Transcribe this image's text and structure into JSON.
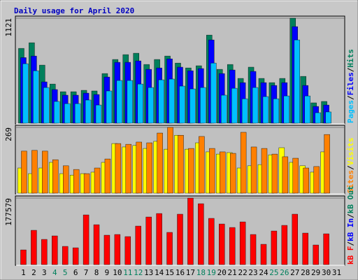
{
  "chart_data": [
    {
      "type": "bar",
      "title": "Daily usage for April 2020",
      "ylim": [
        0,
        1121
      ],
      "yticks": [
        1121
      ],
      "legend_separator": "/",
      "series": [
        {
          "name": "Hits",
          "color": "#00805c",
          "values": [
            799,
            859,
            620,
            418,
            336,
            336,
            351,
            344,
            530,
            680,
            732,
            747,
            627,
            680,
            717,
            642,
            590,
            613,
            941,
            575,
            627,
            478,
            598,
            478,
            433,
            478,
            1121,
            500,
            217,
            232,
            null
          ]
        },
        {
          "name": "Files",
          "color": "#0000ff",
          "values": [
            700,
            717,
            441,
            359,
            299,
            299,
            321,
            306,
            493,
            650,
            650,
            665,
            575,
            590,
            687,
            598,
            560,
            583,
            889,
            530,
            568,
            433,
            553,
            433,
            403,
            433,
            1031,
            403,
            179,
            194,
            null
          ]
        },
        {
          "name": "Pages",
          "color": "#00c0ff",
          "values": [
            635,
            560,
            381,
            232,
            209,
            209,
            247,
            194,
            344,
            456,
            456,
            418,
            381,
            463,
            471,
            396,
            366,
            381,
            642,
            299,
            373,
            261,
            381,
            284,
            261,
            291,
            889,
            291,
            112,
            120,
            null
          ]
        }
      ]
    },
    {
      "type": "bar",
      "ylim": [
        0,
        269
      ],
      "yticks": [
        269
      ],
      "legend_separator": "/",
      "series": [
        {
          "name": "Visits",
          "color": "#ffff00",
          "values": [
            103,
            80,
            103,
            126,
            80,
            74,
            80,
            86,
            126,
            203,
            189,
            195,
            183,
            212,
            180,
            237,
            180,
            206,
            169,
            160,
            166,
            103,
            112,
            117,
            157,
            186,
            126,
            112,
            86,
            169,
            null
          ]
        },
        {
          "name": "Sites",
          "color": "#ff8000",
          "values": [
            172,
            175,
            172,
            137,
            112,
            97,
            80,
            103,
            140,
            203,
            200,
            209,
            206,
            246,
            269,
            237,
            183,
            232,
            183,
            169,
            163,
            249,
            189,
            183,
            160,
            149,
            143,
            103,
            109,
            240,
            null
          ]
        }
      ]
    },
    {
      "type": "bar",
      "ylim": [
        0,
        177579
      ],
      "yticks": [
        177579
      ],
      "legend_separator": "/",
      "categories": [
        "1",
        "2",
        "3",
        "4",
        "5",
        "6",
        "7",
        "8",
        "9",
        "10",
        "11",
        "12",
        "13",
        "14",
        "15",
        "16",
        "17",
        "18",
        "19",
        "20",
        "21",
        "22",
        "23",
        "24",
        "25",
        "26",
        "27",
        "28",
        "29",
        "30",
        "31"
      ],
      "category_colors": [
        "#000000",
        "#000000",
        "#000000",
        "#00805c",
        "#00805c",
        "#000000",
        "#000000",
        "#000000",
        "#000000",
        "#000000",
        "#00805c",
        "#00805c",
        "#000000",
        "#000000",
        "#000000",
        "#000000",
        "#000000",
        "#00805c",
        "#00805c",
        "#000000",
        "#000000",
        "#000000",
        "#000000",
        "#000000",
        "#00805c",
        "#00805c",
        "#000000",
        "#000000",
        "#000000",
        "#000000",
        "#000000"
      ],
      "series": [
        {
          "name": "kB Out",
          "color": "#00805c",
          "values": [
            null,
            null,
            null,
            null,
            null,
            null,
            null,
            null,
            null,
            null,
            null,
            null,
            null,
            null,
            null,
            null,
            null,
            null,
            null,
            null,
            null,
            null,
            null,
            null,
            null,
            null,
            null,
            null,
            null,
            null,
            null
          ]
        },
        {
          "name": "kB In",
          "color": "#0000ff",
          "values": [
            null,
            null,
            null,
            null,
            null,
            null,
            null,
            null,
            null,
            null,
            null,
            null,
            null,
            null,
            null,
            null,
            null,
            null,
            null,
            null,
            null,
            null,
            null,
            null,
            null,
            null,
            null,
            null,
            null,
            null,
            null
          ]
        },
        {
          "name": "kB F",
          "color": "#ff0000",
          "values": [
            39250,
            91590,
            67290,
            76640,
            48600,
            44860,
            132700,
            106500,
            78500,
            80370,
            74760,
            102800,
            127100,
            136400,
            86000,
            134600,
            177579,
            162600,
            123400,
            108400,
            99070,
            114000,
            80370,
            54200,
            89720,
            104700,
            134600,
            84110,
            52340,
            82240,
            null
          ]
        }
      ]
    }
  ]
}
